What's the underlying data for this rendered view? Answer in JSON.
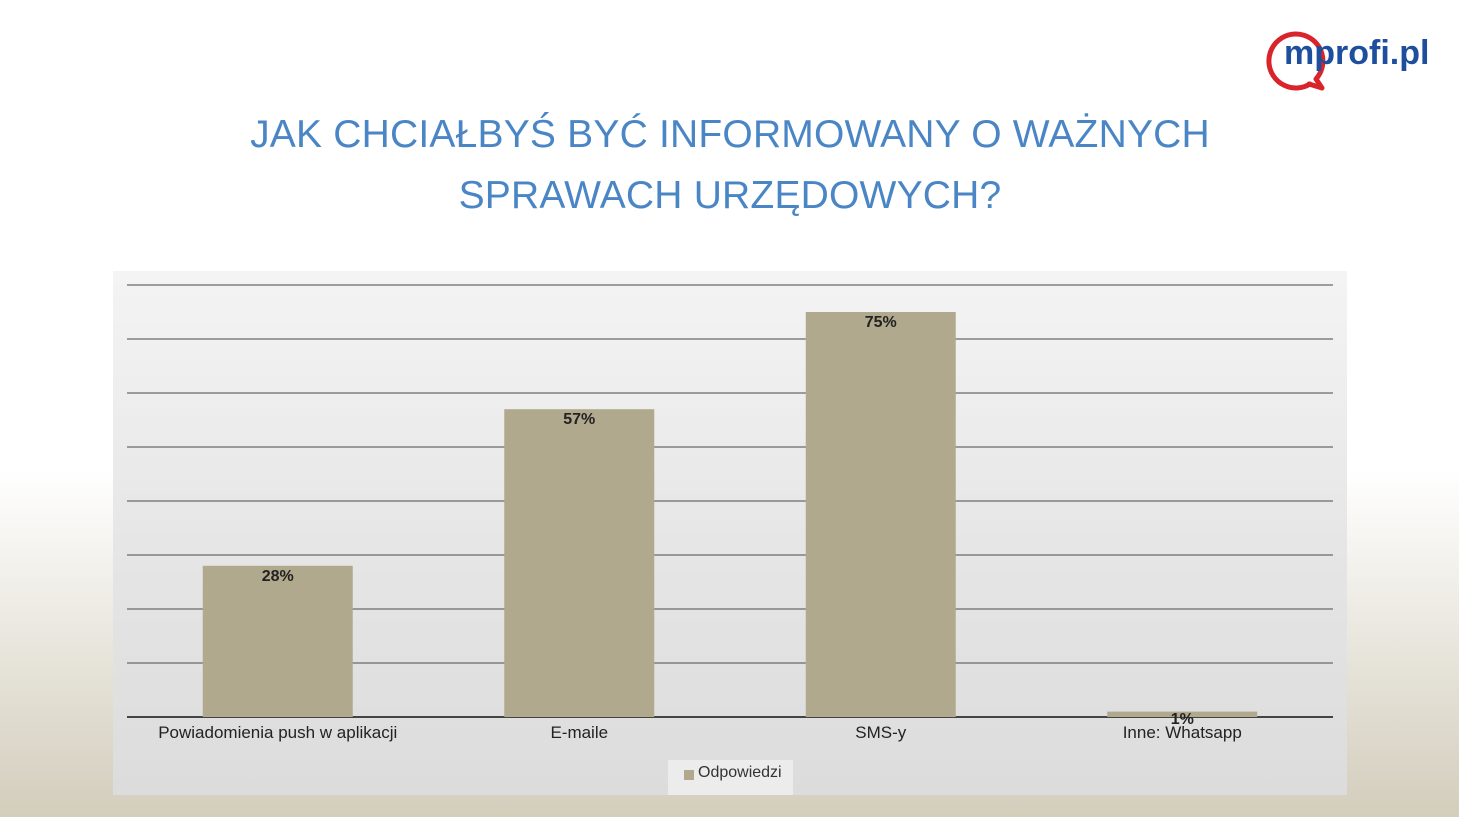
{
  "logo": {
    "text": "mprofi.pl"
  },
  "title": {
    "line1": "JAK CHCIAŁBYŚ BYĆ INFORMOWANY O WAŻNYCH",
    "line2": "SPRAWACH URZĘDOWYCH?"
  },
  "colors": {
    "title": "#4a86c5",
    "bar": "#b1a98d",
    "logo_red": "#d9242b",
    "logo_blue": "#1e4f9e"
  },
  "chart_data": {
    "type": "bar",
    "categories": [
      "Powiadomienia push w aplikacji",
      "E-maile",
      "SMS-y",
      "Inne: Whatsapp"
    ],
    "series": [
      {
        "name": "Odpowiedzi",
        "values": [
          28,
          57,
          75,
          1
        ],
        "labels": [
          "28%",
          "57%",
          "75%",
          "1%"
        ]
      }
    ],
    "ylim": [
      0,
      80
    ],
    "grid": true,
    "legend": "bottom"
  }
}
